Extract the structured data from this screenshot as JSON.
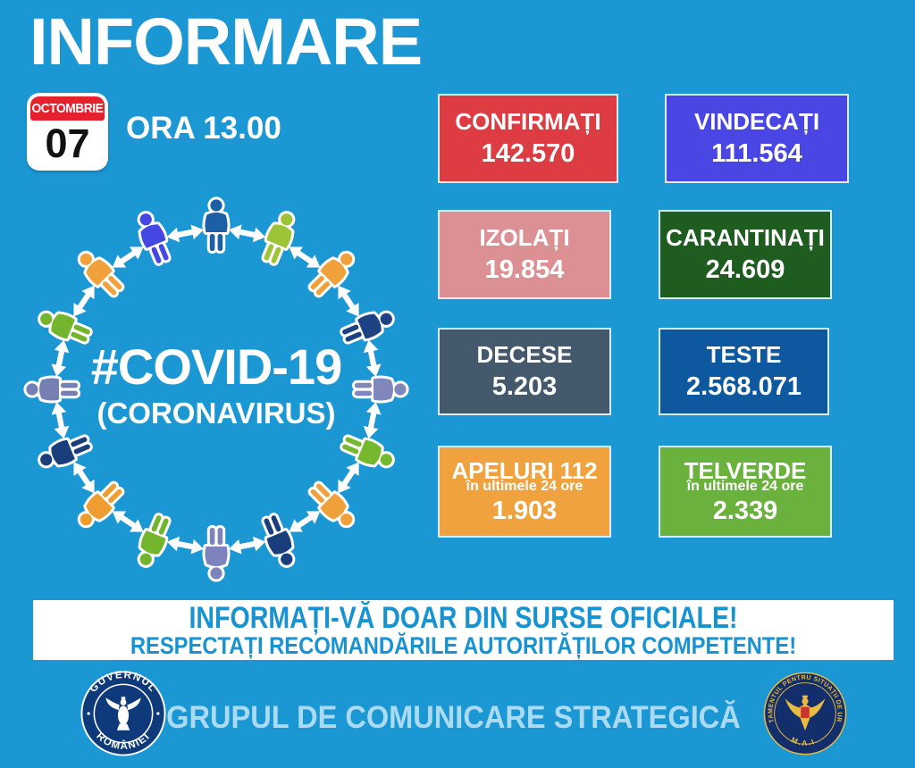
{
  "page": {
    "background": "#1b97d4"
  },
  "header": {
    "title": "INFORMARE",
    "calendar": {
      "month": "OCTOMBRIE",
      "day": "07"
    },
    "time": "ORA 13.00"
  },
  "center_graphic": {
    "hashtag": "#COVID-19",
    "subtitle": "(CORONAVIRUS)",
    "figure_count": 16,
    "person_colors": [
      "#1d5fa5",
      "#9dc436",
      "#f1a13b",
      "#1c4283",
      "#8087bb",
      "#76b82d",
      "#f1a13b",
      "#1a3e7c",
      "#7d84bd",
      "#74b52e",
      "#ef9c31",
      "#1a3e7c",
      "#767fb1",
      "#74b52e",
      "#f1a13b",
      "#4447e2"
    ],
    "arrow_color": "#ffffff"
  },
  "stats": [
    {
      "label": "CONFIRMAȚI",
      "value": "142.570",
      "bg": "#dc3c42"
    },
    {
      "label": "VINDECAȚI",
      "value": "111.564",
      "bg": "#4a46e4"
    },
    {
      "label": "IZOLAȚI",
      "value": "19.854",
      "bg": "#dd9093"
    },
    {
      "label": "CARANTINAȚI",
      "value": "24.609",
      "bg": "#1e5c20"
    },
    {
      "label": "DECESE",
      "value": "5.203",
      "bg": "#44596b"
    },
    {
      "label": "TESTE",
      "value": "2.568.071",
      "bg": "#0d589f"
    },
    {
      "label": "APELURI 112",
      "sublabel": "în ultimele 24 ore",
      "value": "1.903",
      "bg": "#efa23d"
    },
    {
      "label": "TELVERDE",
      "sublabel": "în ultimele 24 ore",
      "value": "2.339",
      "bg": "#6ab23d"
    }
  ],
  "banner": {
    "line1": "INFORMAȚI-VĂ DOAR DIN SURSE OFICIALE!",
    "line2": "RESPECTAȚI RECOMANDĂRILE AUTORITĂȚILOR COMPETENTE!",
    "text_color": "#1793d1",
    "background": "#ffffff"
  },
  "footer": {
    "label": "GRUPUL DE COMUNICARE STRATEGICĂ",
    "left_seal": {
      "ring_top": "GUVERNUL",
      "ring_bottom": "ROMÂNIEI"
    },
    "right_seal": {
      "ring_text": "DEPARTAMENTUL PENTRU SITUAȚII DE URGENȚĂ",
      "bottom": "M.A.I."
    }
  }
}
